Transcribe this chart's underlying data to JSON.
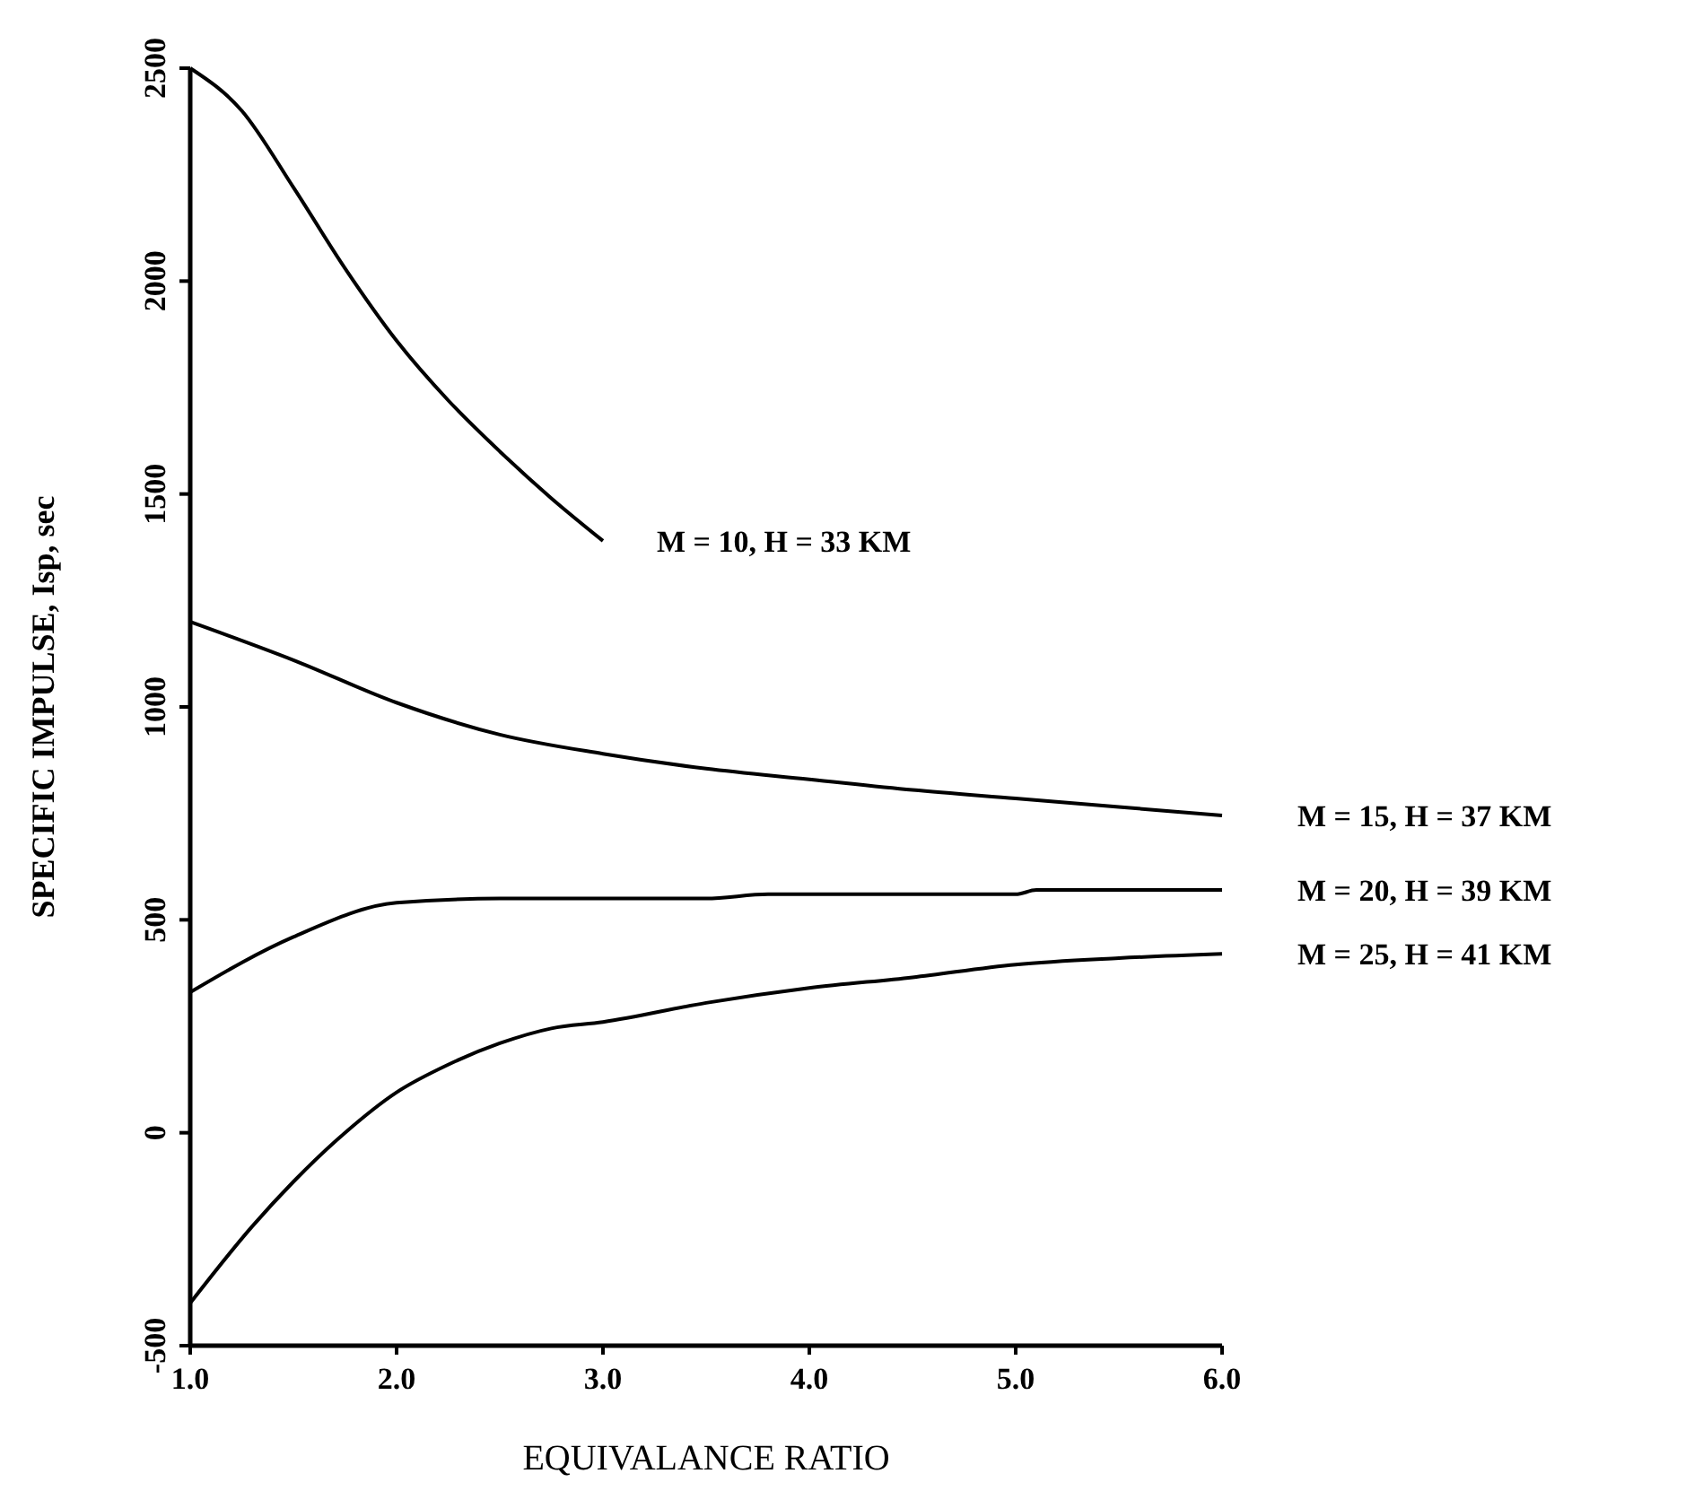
{
  "chart_data": {
    "type": "line",
    "xlabel": "EQUIVALANCE RATIO",
    "ylabel": "SPECIFIC IMPULSE, Isp, sec",
    "xlim": [
      1,
      6
    ],
    "ylim": [
      -500,
      2500
    ],
    "xticks": [
      {
        "value": 1,
        "label": "1.0"
      },
      {
        "value": 2,
        "label": "2.0"
      },
      {
        "value": 3,
        "label": "3.0"
      },
      {
        "value": 4,
        "label": "4.0"
      },
      {
        "value": 5,
        "label": "5.0"
      },
      {
        "value": 6,
        "label": "6.0"
      }
    ],
    "yticks": [
      -500,
      0,
      500,
      1000,
      1500,
      2000,
      2500
    ],
    "grid": false,
    "marker": "none",
    "line_style": "solid",
    "series": [
      {
        "name": "M = 10, H = 33 KM",
        "color": "#000000",
        "x": [
          1.0,
          1.25,
          1.5,
          1.75,
          2.0,
          2.25,
          2.5,
          2.75,
          3.0
        ],
        "values": [
          2500,
          2400,
          2220,
          2030,
          1860,
          1720,
          1600,
          1490,
          1390
        ]
      },
      {
        "name": "M = 15, H = 37 KM",
        "color": "#000000",
        "x": [
          1.0,
          1.5,
          2.0,
          2.5,
          3.0,
          3.5,
          4.0,
          4.5,
          5.0,
          5.5,
          6.0
        ],
        "values": [
          1200,
          1110,
          1010,
          935,
          890,
          855,
          830,
          805,
          785,
          765,
          745
        ]
      },
      {
        "name": "M = 20, H = 39 KM",
        "color": "#000000",
        "x": [
          1.0,
          1.5,
          2.0,
          2.5,
          3.5,
          3.8,
          5.0,
          5.1,
          6.0
        ],
        "values": [
          330,
          460,
          540,
          550,
          550,
          560,
          560,
          570,
          570
        ]
      },
      {
        "name": "M = 25, H = 41 KM",
        "color": "#000000",
        "x": [
          1.0,
          1.3,
          1.5,
          1.75,
          2.0,
          2.25,
          2.5,
          2.75,
          3.0,
          3.5,
          4.0,
          4.5,
          5.0,
          5.5,
          6.0
        ],
        "values": [
          -400,
          -220,
          -115,
          0,
          95,
          160,
          210,
          245,
          260,
          305,
          340,
          365,
          395,
          410,
          420
        ]
      }
    ]
  }
}
